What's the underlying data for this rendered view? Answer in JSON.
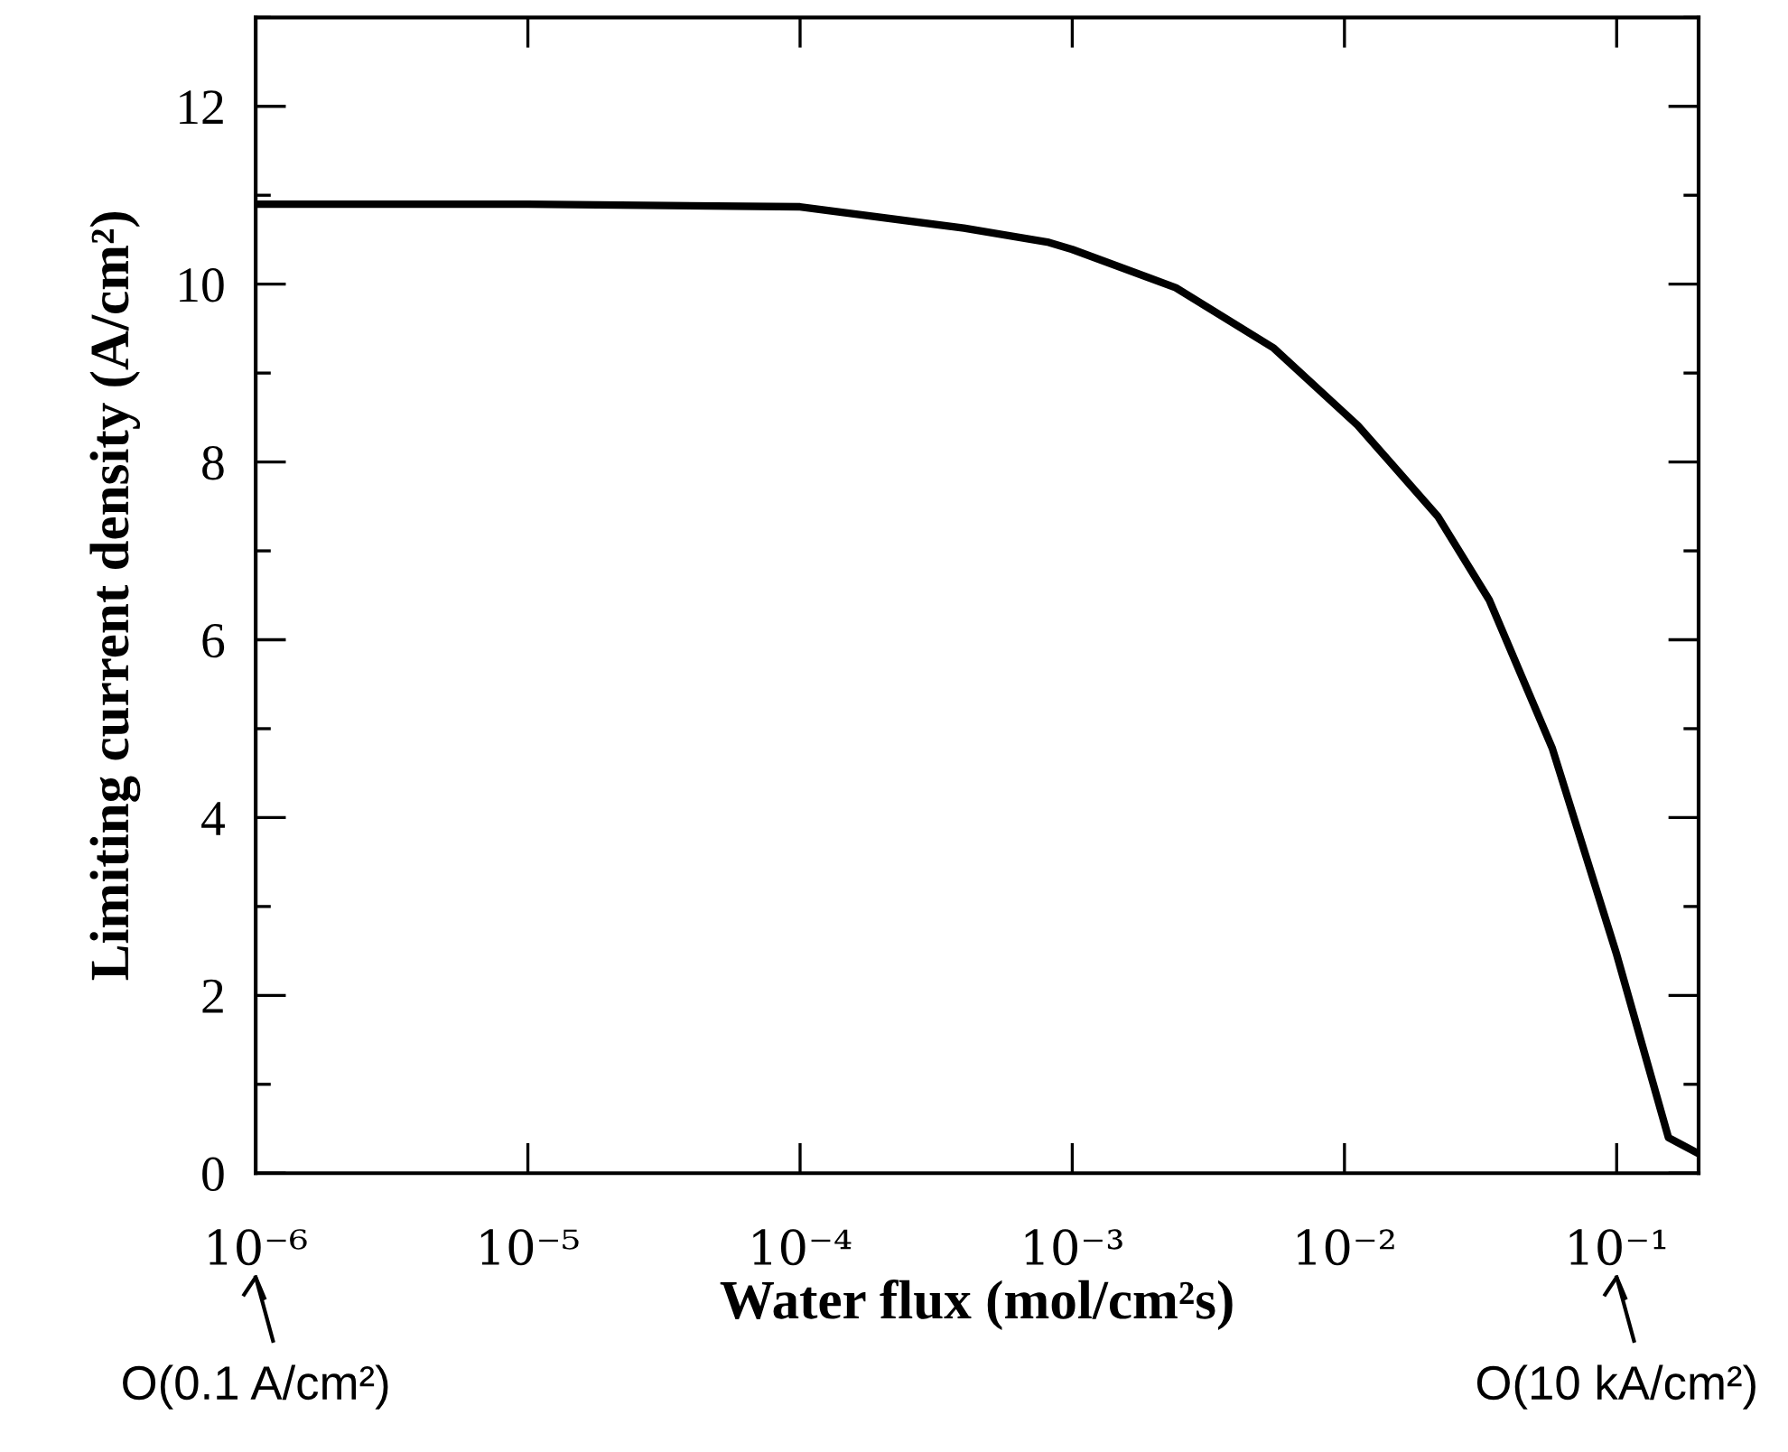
{
  "chart_data": {
    "type": "line",
    "xlabel": "Water flux (mol/cm²s)",
    "ylabel": "Limiting current density (A/cm²)",
    "log": "x",
    "xlim": [
      1e-06,
      0.2
    ],
    "ylim": [
      0,
      13
    ],
    "xticks": [
      {
        "value": 1e-06,
        "label": "10⁻⁶"
      },
      {
        "value": 1e-05,
        "label": "10⁻⁵"
      },
      {
        "value": 0.0001,
        "label": "10⁻⁴"
      },
      {
        "value": 0.001,
        "label": "10⁻³"
      },
      {
        "value": 0.01,
        "label": "10⁻²"
      },
      {
        "value": 0.1,
        "label": "10⁻¹"
      }
    ],
    "yticks": [
      0,
      2,
      4,
      6,
      8,
      10,
      12
    ],
    "grid": false,
    "marker": "none",
    "line_style": "solid",
    "series": [
      {
        "color": "#000000",
        "x": [
          1e-06,
          1e-05,
          0.0001,
          0.0004,
          0.00082,
          0.001,
          0.0024,
          0.0055,
          0.0112,
          0.022,
          0.034,
          0.058,
          0.1,
          0.155,
          0.2
        ],
        "values": [
          10.9,
          10.9,
          10.87,
          10.63,
          10.47,
          10.39,
          9.96,
          9.28,
          8.41,
          7.39,
          6.45,
          4.78,
          2.46,
          0.4,
          0.22
        ]
      }
    ],
    "annotations": [
      "O(0.1 A/cm²)",
      "O(10 kA/cm²)"
    ]
  }
}
